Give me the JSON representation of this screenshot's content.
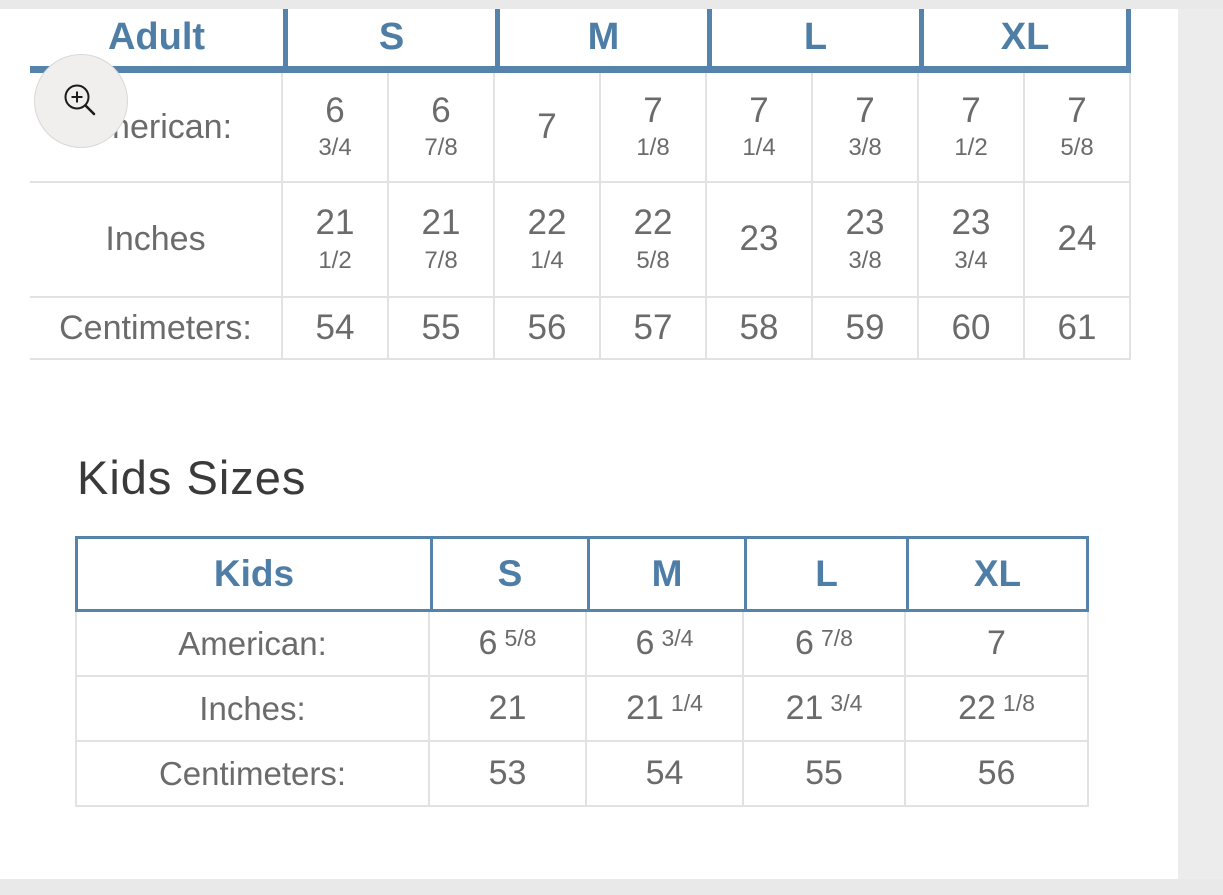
{
  "colors": {
    "accent_blue": "#4e7da6",
    "blue_border": "#5583ac",
    "body_text": "#6b6b6b",
    "light_border": "#e2e2e2",
    "page_gutter": "#e9e9e9",
    "heading_text": "#3a3a3a"
  },
  "zoom_button": {
    "icon": "magnifier-plus-icon"
  },
  "adult_table": {
    "corner_label": "Adult",
    "size_headers": [
      "S",
      "M",
      "L",
      "XL"
    ],
    "rows": [
      {
        "label": "American:",
        "values": [
          {
            "whole": "6",
            "fraction": "3/4"
          },
          {
            "whole": "6",
            "fraction": "7/8"
          },
          {
            "whole": "7",
            "fraction": ""
          },
          {
            "whole": "7",
            "fraction": "1/8"
          },
          {
            "whole": "7",
            "fraction": "1/4"
          },
          {
            "whole": "7",
            "fraction": "3/8"
          },
          {
            "whole": "7",
            "fraction": "1/2"
          },
          {
            "whole": "7",
            "fraction": "5/8"
          }
        ]
      },
      {
        "label": "Inches",
        "values": [
          {
            "whole": "21",
            "fraction": "1/2"
          },
          {
            "whole": "21",
            "fraction": "7/8"
          },
          {
            "whole": "22",
            "fraction": "1/4"
          },
          {
            "whole": "22",
            "fraction": "5/8"
          },
          {
            "whole": "23",
            "fraction": ""
          },
          {
            "whole": "23",
            "fraction": "3/8"
          },
          {
            "whole": "23",
            "fraction": "3/4"
          },
          {
            "whole": "24",
            "fraction": ""
          }
        ]
      },
      {
        "label": "Centimeters:",
        "values": [
          {
            "whole": "54",
            "fraction": ""
          },
          {
            "whole": "55",
            "fraction": ""
          },
          {
            "whole": "56",
            "fraction": ""
          },
          {
            "whole": "57",
            "fraction": ""
          },
          {
            "whole": "58",
            "fraction": ""
          },
          {
            "whole": "59",
            "fraction": ""
          },
          {
            "whole": "60",
            "fraction": ""
          },
          {
            "whole": "61",
            "fraction": ""
          }
        ]
      }
    ]
  },
  "kids_section": {
    "heading": "Kids Sizes",
    "table": {
      "corner_label": "Kids",
      "size_headers": [
        "S",
        "M",
        "L",
        "XL"
      ],
      "rows": [
        {
          "label": "American:",
          "values": [
            {
              "whole": "6",
              "fraction": "5/8"
            },
            {
              "whole": "6",
              "fraction": "3/4"
            },
            {
              "whole": "6",
              "fraction": "7/8"
            },
            {
              "whole": "7",
              "fraction": ""
            }
          ]
        },
        {
          "label": "Inches:",
          "values": [
            {
              "whole": "21",
              "fraction": ""
            },
            {
              "whole": "21",
              "fraction": "1/4"
            },
            {
              "whole": "21",
              "fraction": "3/4"
            },
            {
              "whole": "22",
              "fraction": "1/8"
            }
          ]
        },
        {
          "label": "Centimeters:",
          "values": [
            {
              "whole": "53",
              "fraction": ""
            },
            {
              "whole": "54",
              "fraction": ""
            },
            {
              "whole": "55",
              "fraction": ""
            },
            {
              "whole": "56",
              "fraction": ""
            }
          ]
        }
      ]
    }
  }
}
